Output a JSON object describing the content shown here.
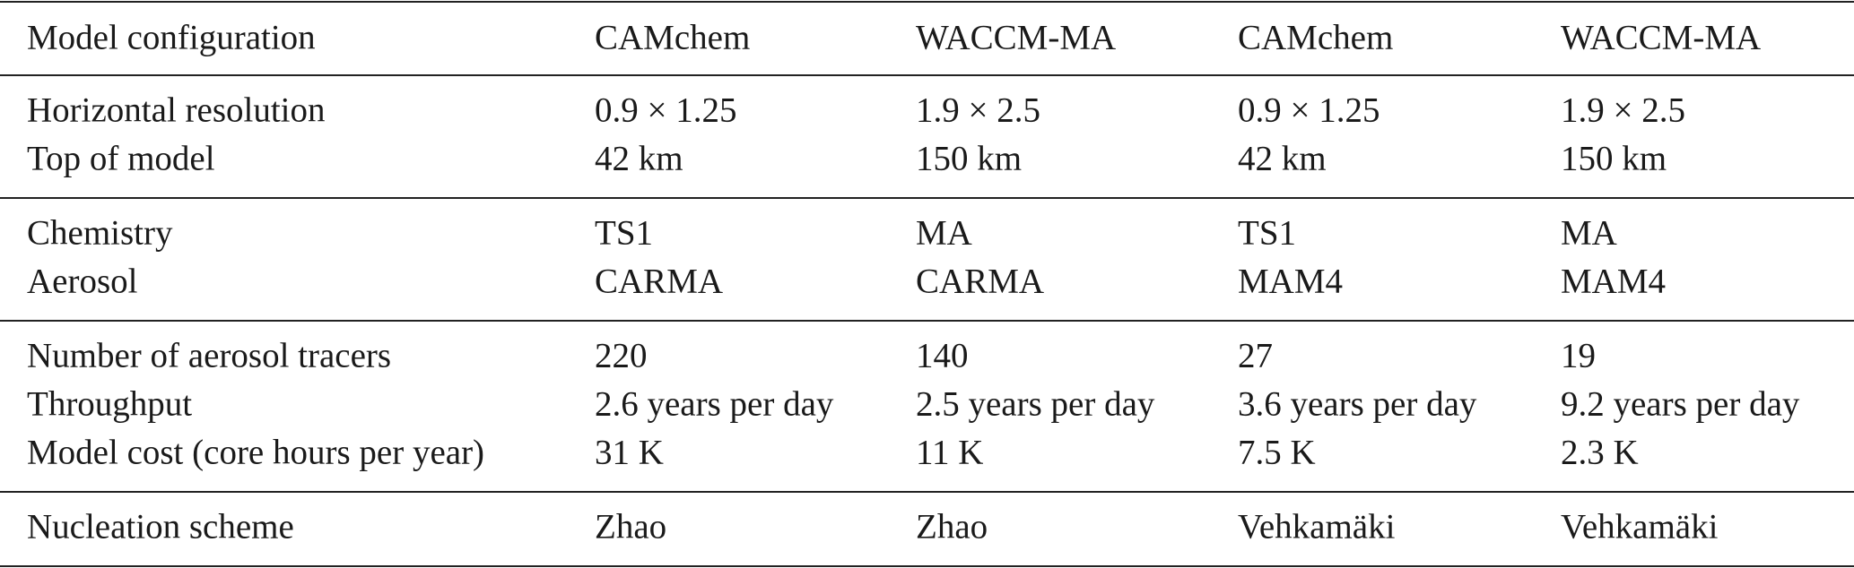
{
  "table": {
    "header": [
      "Model configuration",
      "CAMchem",
      "WACCM-MA",
      "CAMchem",
      "WACCM-MA"
    ],
    "sections": [
      [
        [
          "Horizontal resolution",
          "0.9 × 1.25",
          "1.9 × 2.5",
          "0.9 × 1.25",
          "1.9 × 2.5"
        ],
        [
          "Top of model",
          "42 km",
          "150 km",
          "42 km",
          "150 km"
        ]
      ],
      [
        [
          "Chemistry",
          "TS1",
          "MA",
          "TS1",
          "MA"
        ],
        [
          "Aerosol",
          "CARMA",
          "CARMA",
          "MAM4",
          "MAM4"
        ]
      ],
      [
        [
          "Number of aerosol tracers",
          "220",
          "140",
          "27",
          "19"
        ],
        [
          "Throughput",
          "2.6 years per day",
          "2.5 years per day",
          "3.6 years per day",
          "9.2 years per day"
        ],
        [
          "Model cost (core hours per year)",
          "31 K",
          "11 K",
          "7.5 K",
          "2.3 K"
        ]
      ],
      [
        [
          "Nucleation scheme",
          "Zhao",
          "Zhao",
          "Vehkamäki",
          "Vehkamäki"
        ]
      ]
    ]
  }
}
